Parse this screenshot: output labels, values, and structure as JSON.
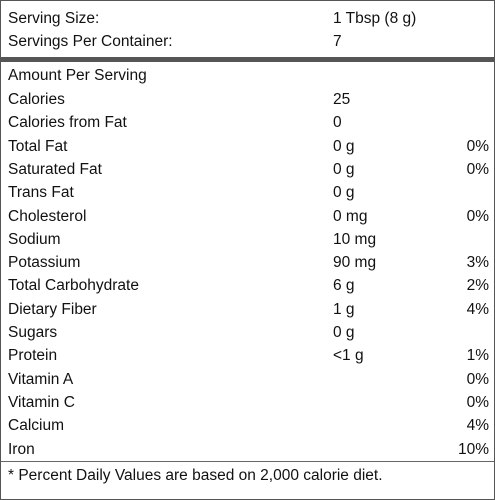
{
  "serving_info": {
    "serving_size_label": "Serving Size:",
    "serving_size_value": "1 Tbsp (8 g)",
    "servings_label": "Servings Per Container:",
    "servings_value": "7"
  },
  "amount_per_serving": "Amount Per Serving",
  "nutrients": [
    {
      "name": "Calories",
      "amount": "25",
      "dv": ""
    },
    {
      "name": "Calories from Fat",
      "amount": "0",
      "dv": ""
    },
    {
      "name": "Total Fat",
      "amount": "0 g",
      "dv": "0%"
    },
    {
      "name": "Saturated Fat",
      "amount": "0 g",
      "dv": "0%"
    },
    {
      "name": "Trans Fat",
      "amount": "0 g",
      "dv": ""
    },
    {
      "name": "Cholesterol",
      "amount": "0 mg",
      "dv": "0%"
    },
    {
      "name": "Sodium",
      "amount": "10 mg",
      "dv": ""
    },
    {
      "name": "Potassium",
      "amount": "90 mg",
      "dv": "3%"
    },
    {
      "name": "Total Carbohydrate",
      "amount": "6 g",
      "dv": "2%"
    },
    {
      "name": "Dietary Fiber",
      "amount": "1 g",
      "dv": "4%"
    },
    {
      "name": "Sugars",
      "amount": "0 g",
      "dv": ""
    },
    {
      "name": "Protein",
      "amount": "<1 g",
      "dv": "1%"
    },
    {
      "name": "Vitamin A",
      "amount": "",
      "dv": "0%"
    },
    {
      "name": "Vitamin C",
      "amount": "",
      "dv": "0%"
    },
    {
      "name": "Calcium",
      "amount": "",
      "dv": "4%"
    },
    {
      "name": "Iron",
      "amount": "",
      "dv": "10%"
    }
  ],
  "footnote": "* Percent Daily Values are based on 2,000 calorie diet."
}
